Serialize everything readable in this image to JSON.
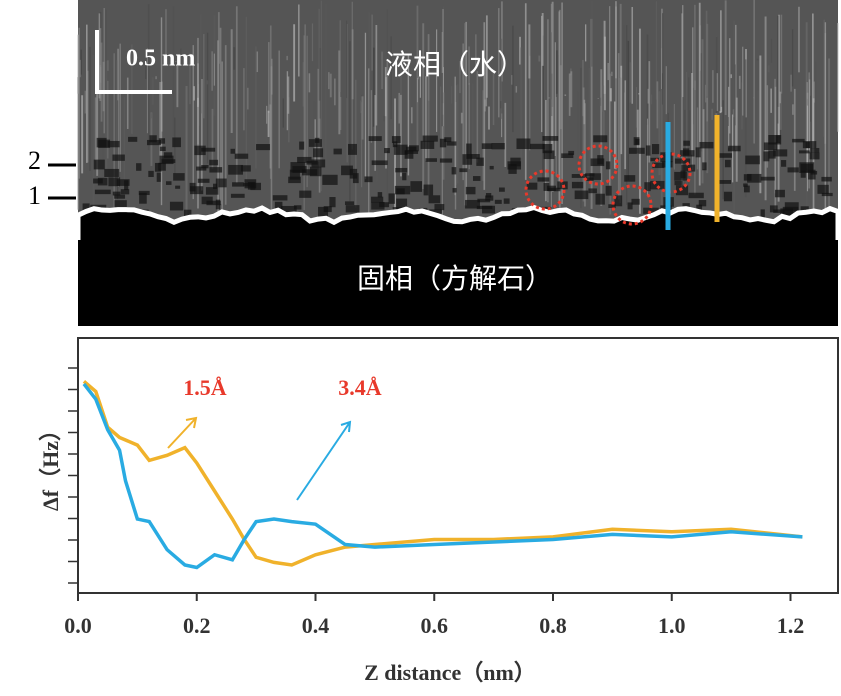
{
  "image": {
    "scale_bar": "0.5 nm",
    "liquid_label": "液相（水）",
    "solid_label": "固相（方解石）",
    "layer_labels": [
      "2",
      "1"
    ]
  },
  "chart_data": {
    "type": "line",
    "x_label": "Z distance（nm）",
    "y_label": "Δf（Hz）",
    "annotations": [
      {
        "text": "1.5Å",
        "color": "#e8392b"
      },
      {
        "text": "3.4Å",
        "color": "#e8392b"
      }
    ],
    "x": [
      0.01,
      0.03,
      0.05,
      0.07,
      0.08,
      0.1,
      0.12,
      0.15,
      0.18,
      0.2,
      0.23,
      0.26,
      0.28,
      0.3,
      0.33,
      0.36,
      0.4,
      0.45,
      0.5,
      0.6,
      0.7,
      0.8,
      0.9,
      1.0,
      1.1,
      1.22
    ],
    "series": [
      {
        "name": "1.5Å",
        "color": "#f0b22b",
        "values": [
          0.83,
          0.79,
          0.65,
          0.61,
          0.6,
          0.58,
          0.52,
          0.54,
          0.57,
          0.51,
          0.4,
          0.29,
          0.21,
          0.14,
          0.12,
          0.11,
          0.15,
          0.18,
          0.19,
          0.21,
          0.21,
          0.22,
          0.25,
          0.24,
          0.25,
          0.22
        ]
      },
      {
        "name": "3.4Å",
        "color": "#29abe2",
        "values": [
          0.82,
          0.76,
          0.64,
          0.56,
          0.44,
          0.29,
          0.28,
          0.17,
          0.11,
          0.1,
          0.15,
          0.13,
          0.21,
          0.28,
          0.29,
          0.28,
          0.27,
          0.19,
          0.18,
          0.19,
          0.2,
          0.21,
          0.23,
          0.22,
          0.24,
          0.22
        ]
      }
    ],
    "xlim": [
      0,
      1.28
    ],
    "ylim": [
      0,
      1
    ],
    "xticks": [
      {
        "value": 0,
        "label": "0.0"
      },
      0.2,
      0.4,
      0.6,
      0.8,
      {
        "value": 1,
        "label": "1.0"
      },
      1.2
    ]
  }
}
